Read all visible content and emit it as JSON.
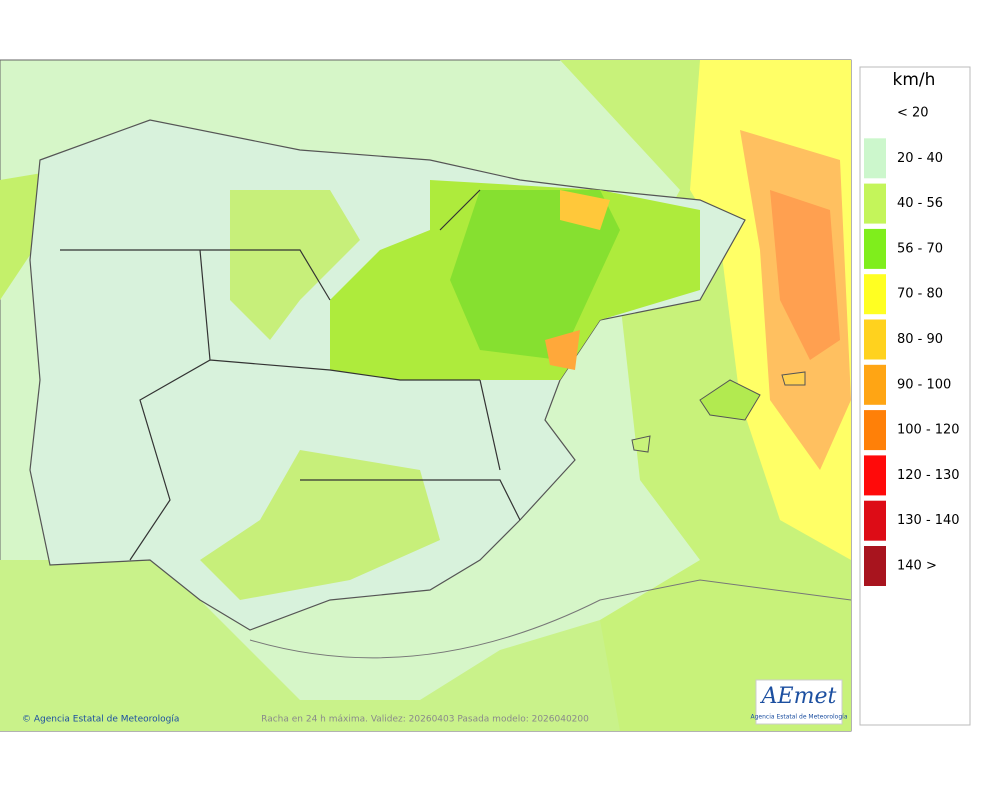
{
  "legend": {
    "title": "km/h",
    "items": [
      {
        "label": "< 20",
        "color": "#ffffff"
      },
      {
        "label": "20 - 40",
        "color": "#ccf7cc"
      },
      {
        "label": "40 - 56",
        "color": "#c4f55a"
      },
      {
        "label": "56 - 70",
        "color": "#7fee1c"
      },
      {
        "label": "70 - 80",
        "color": "#ffff22"
      },
      {
        "label": "80 - 90",
        "color": "#ffd21e"
      },
      {
        "label": "90 - 100",
        "color": "#ffa514"
      },
      {
        "label": "100 - 120",
        "color": "#ff8008"
      },
      {
        "label": "120 - 130",
        "color": "#ff0a0a"
      },
      {
        "label": "130 - 140",
        "color": "#dd0c16"
      },
      {
        "label": "140 >",
        "color": "#a8141e"
      }
    ]
  },
  "footer": {
    "credit": "© Agencia Estatal de Meteorología",
    "caption": "Racha en 24 h máxima. Validez: 20260403 Pasada modelo: 2026040200"
  },
  "logo": {
    "name": "AEmet",
    "subtitle": "Agencia Estatal de Meteorología"
  }
}
